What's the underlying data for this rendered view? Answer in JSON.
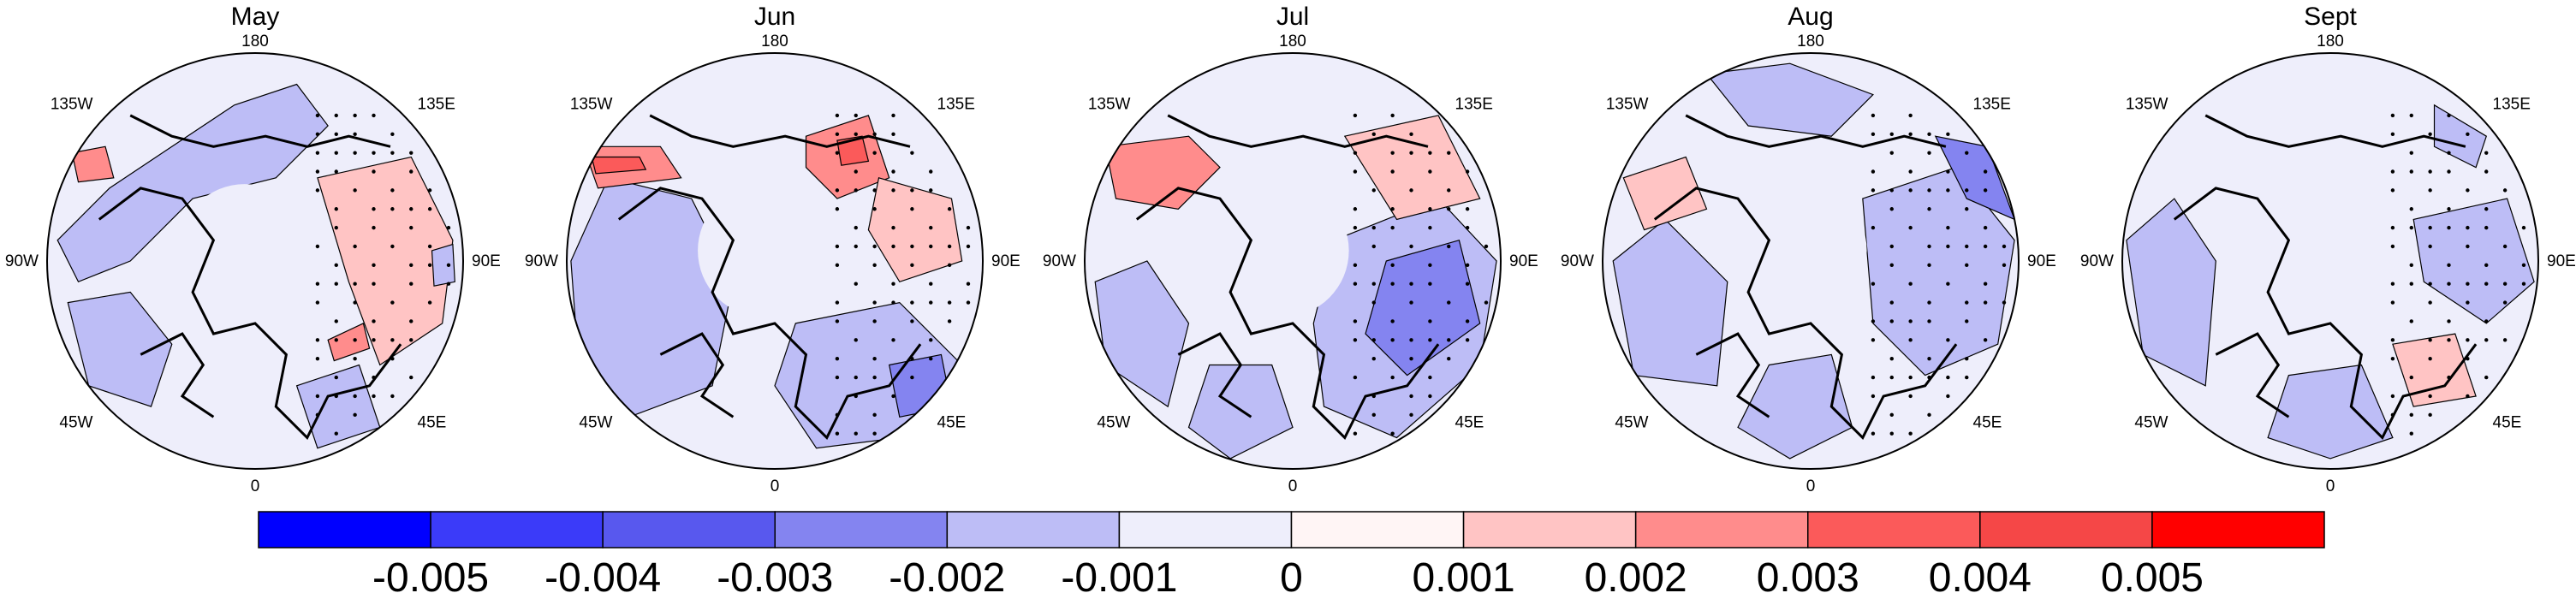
{
  "panels": [
    {
      "title": "May"
    },
    {
      "title": "Jun"
    },
    {
      "title": "Jul"
    },
    {
      "title": "Aug"
    },
    {
      "title": "Sept"
    }
  ],
  "longitude_labels": {
    "top": "180",
    "top_right": "135E",
    "right": "90E",
    "bottom_right": "45E",
    "bottom": "0",
    "bottom_left": "45W",
    "left": "90W",
    "top_left": "135W"
  },
  "colorbar": {
    "colors": [
      "#0000ff",
      "#3b3bf9",
      "#5858ee",
      "#8484f0",
      "#bdbdf6",
      "#eeeefb",
      "#fff5f5",
      "#ffc4c4",
      "#ff8c8c",
      "#fb5a5a",
      "#f54747",
      "#ff0000"
    ],
    "tick_labels": [
      "-0.005",
      "-0.004",
      "-0.003",
      "-0.002",
      "-0.001",
      "0",
      "0.001",
      "0.002",
      "0.003",
      "0.004",
      "0.005"
    ]
  }
}
